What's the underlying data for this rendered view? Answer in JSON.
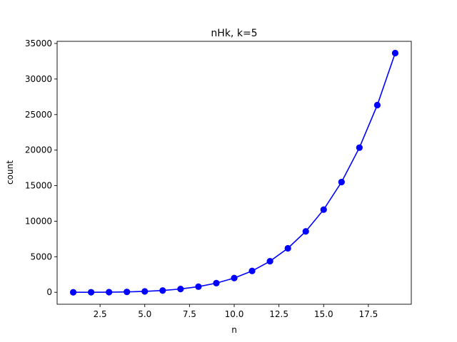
{
  "chart_data": {
    "type": "line",
    "title": "nHk, k=5",
    "xlabel": "n",
    "ylabel": "count",
    "xlim": [
      0.1,
      19.9
    ],
    "ylim": [
      -1680,
      35300
    ],
    "xticks": [
      2.5,
      5.0,
      7.5,
      10.0,
      12.5,
      15.0,
      17.5
    ],
    "xtick_labels": [
      "2.5",
      "5.0",
      "7.5",
      "10.0",
      "12.5",
      "15.0",
      "17.5"
    ],
    "yticks": [
      0,
      5000,
      10000,
      15000,
      20000,
      25000,
      30000,
      35000
    ],
    "ytick_labels": [
      "0",
      "5000",
      "10000",
      "15000",
      "20000",
      "25000",
      "30000",
      "35000"
    ],
    "grid": false,
    "series": [
      {
        "color": "#0000ff",
        "marker": "circle",
        "x": [
          1,
          2,
          3,
          4,
          5,
          6,
          7,
          8,
          9,
          10,
          11,
          12,
          13,
          14,
          15,
          16,
          17,
          18,
          19
        ],
        "y": [
          1,
          6,
          21,
          56,
          126,
          252,
          462,
          792,
          1287,
          2002,
          3003,
          4368,
          6188,
          8568,
          11628,
          15504,
          20349,
          26334,
          33649
        ]
      }
    ]
  }
}
